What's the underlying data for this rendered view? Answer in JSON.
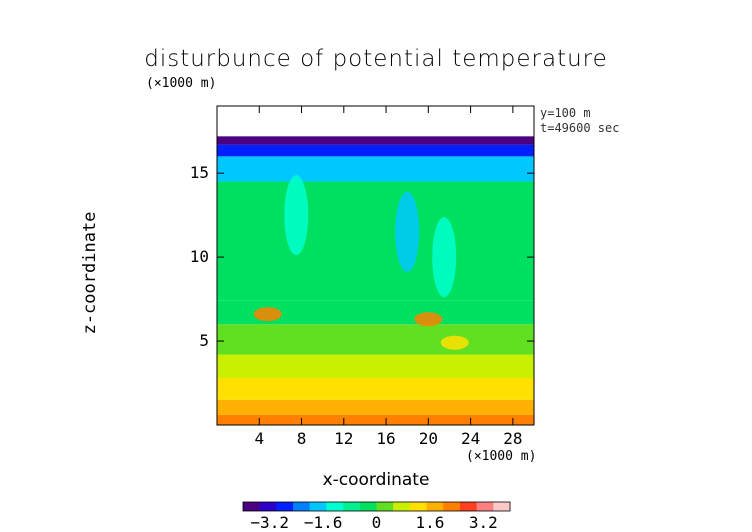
{
  "chart_data": {
    "type": "heatmap",
    "title": "disturbunce of potential temperature",
    "xlabel": "x-coordinate",
    "ylabel": "z-coordinate",
    "x_unit": "(×1000 m)",
    "z_unit": "(×1000 m)",
    "annotations": [
      "y=100 m",
      "t=49600 sec"
    ],
    "xlim": [
      0,
      30
    ],
    "ylim": [
      0,
      19
    ],
    "x_ticks": [
      "4",
      "8",
      "12",
      "16",
      "20",
      "24",
      "28"
    ],
    "y_ticks": [
      "5",
      "10",
      "15"
    ],
    "colorbar": {
      "range": [
        -4,
        4
      ],
      "ticks": [
        "−3.2",
        "−1.6",
        "0",
        "1.6",
        "3.2"
      ],
      "colors": [
        "#4b0082",
        "#2b00c8",
        "#0020ff",
        "#0080ff",
        "#00c8ff",
        "#00ffd0",
        "#00f090",
        "#00e060",
        "#60e020",
        "#c8f000",
        "#ffe000",
        "#ffb000",
        "#ff8000",
        "#ff4020",
        "#ff8080",
        "#ffc8c8"
      ]
    },
    "field": {
      "top_z": 17.2,
      "layers": [
        {
          "z": [
            0.0,
            0.6
          ],
          "value": 2.2
        },
        {
          "z": [
            0.6,
            1.5
          ],
          "value": 1.8
        },
        {
          "z": [
            1.5,
            2.8
          ],
          "value": 1.2
        },
        {
          "z": [
            2.8,
            4.2
          ],
          "value": 0.6
        },
        {
          "z": [
            4.2,
            6.0
          ],
          "value": 0.1
        },
        {
          "z": [
            6.0,
            7.4
          ],
          "value": -0.2
        },
        {
          "z": [
            7.4,
            14.5
          ],
          "value": -0.5
        },
        {
          "z": [
            14.5,
            16.0
          ],
          "value": -1.6
        },
        {
          "z": [
            16.0,
            16.7
          ],
          "value": -2.6
        },
        {
          "z": [
            16.7,
            17.2
          ],
          "value": -3.6
        }
      ],
      "features": [
        {
          "x": 4.8,
          "z": 6.6,
          "value": 2.2
        },
        {
          "x": 20.0,
          "z": 6.3,
          "value": 2.2
        },
        {
          "x": 22.5,
          "z": 4.9,
          "value": 1.2
        },
        {
          "x": 7.5,
          "z": 12.5,
          "value": -1.4
        },
        {
          "x": 18.0,
          "z": 11.5,
          "value": -1.6
        },
        {
          "x": 21.5,
          "z": 10.0,
          "value": -1.3
        }
      ]
    }
  }
}
